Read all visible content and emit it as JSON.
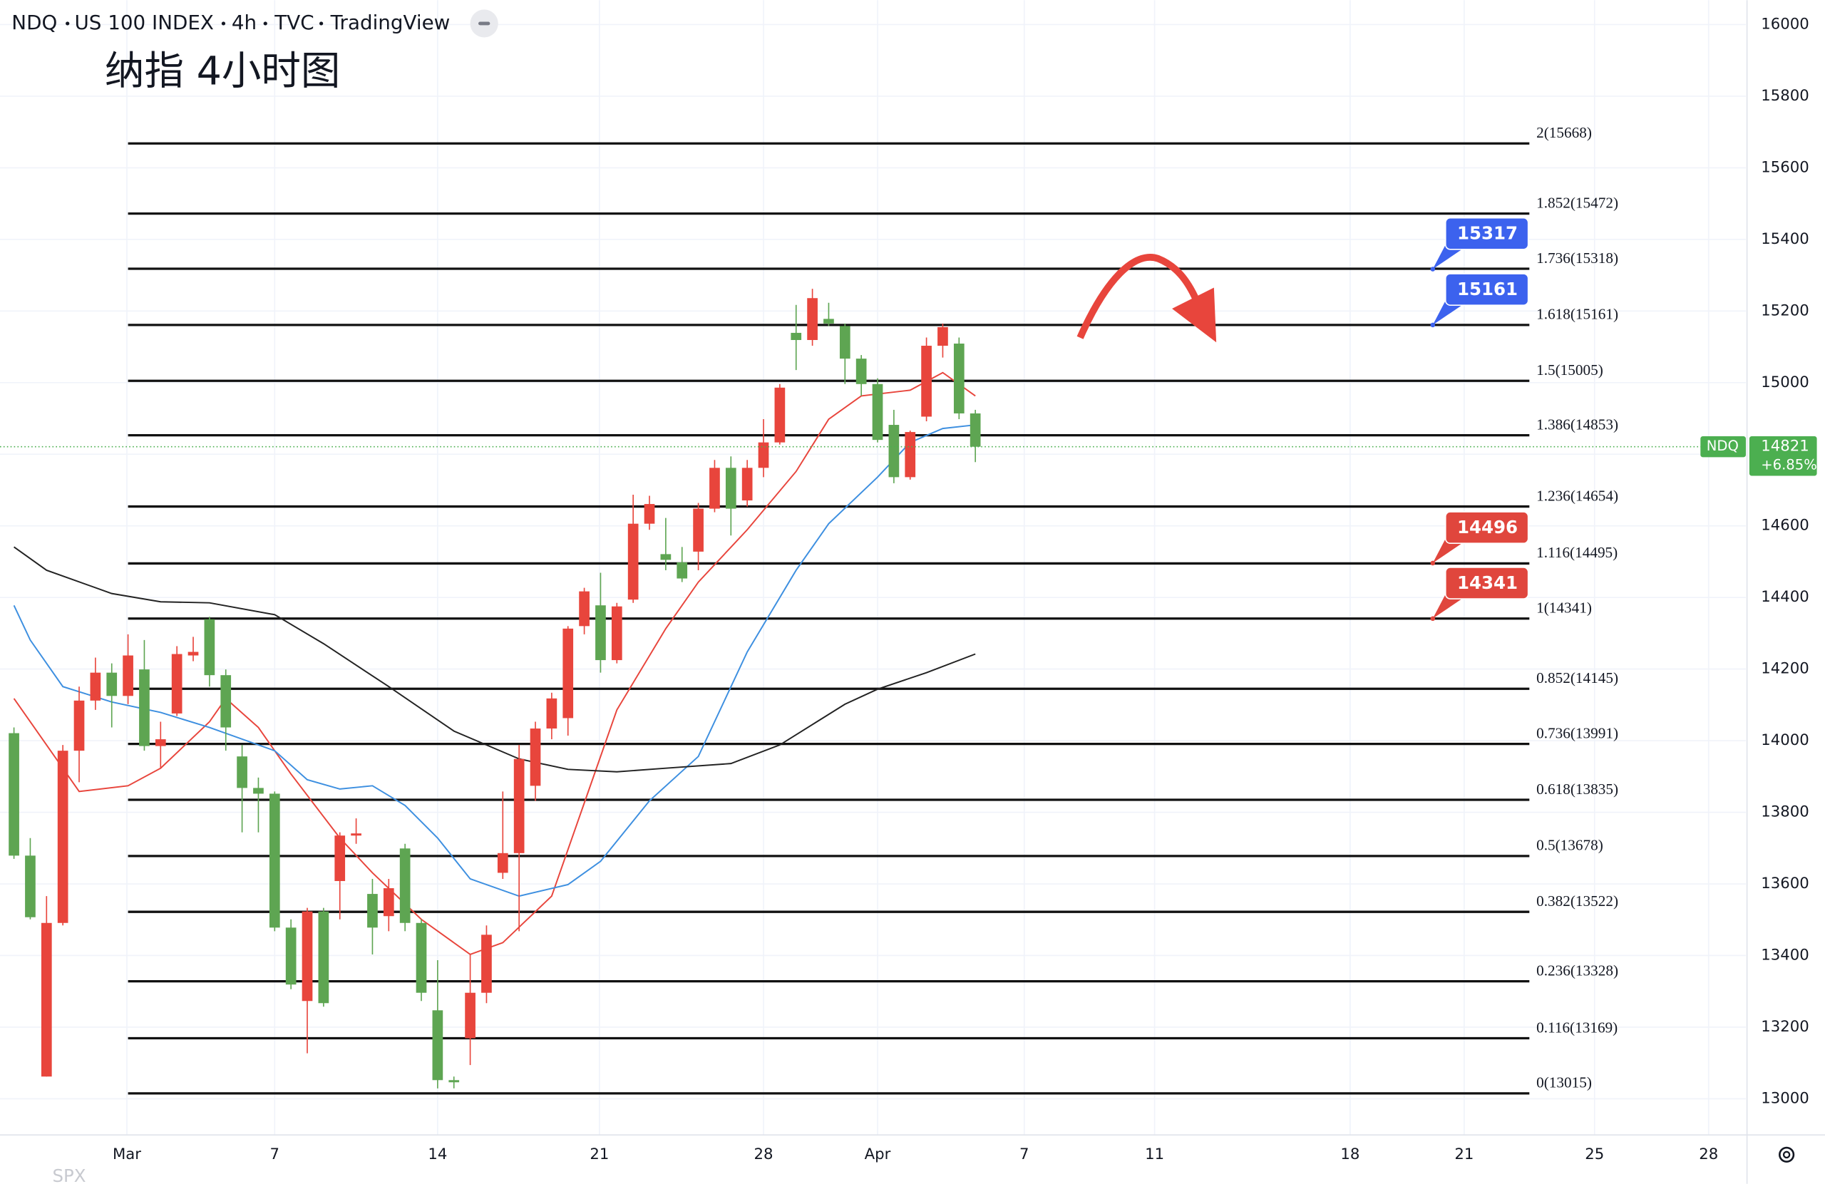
{
  "header": {
    "symbol": "NDQ",
    "name": "US 100 INDEX",
    "interval": "4h",
    "source": "TVC",
    "platform": "TradingView"
  },
  "chart_data": {
    "type": "candlestick",
    "title": "纳指 4小时图",
    "open": [
      14021,
      13679,
      13062,
      13491,
      13972,
      14112,
      14190,
      14125,
      14199,
      13985,
      14076,
      14238,
      14339,
      14183,
      13956,
      13868,
      13852,
      13478,
      13273,
      13523,
      13608,
      13735,
      13572,
      13510,
      13699,
      13491,
      13247,
      13052,
      13169,
      13296,
      13631,
      13686,
      13874,
      14034,
      14063,
      14320,
      14378,
      14225,
      14394,
      14606,
      14521,
      14498,
      14528,
      14648,
      14762,
      14671,
      14762,
      14833,
      15139,
      15119,
      15178,
      15158,
      15067,
      14996,
      14882,
      14736,
      14905,
      15103,
      15109,
      14914
    ],
    "high": [
      14037,
      13728,
      13566,
      13988,
      14151,
      14232,
      14216,
      14297,
      14281,
      14053,
      14264,
      14290,
      14346,
      14199,
      13988,
      13897,
      13858,
      13501,
      13533,
      13533,
      13744,
      13783,
      13614,
      13614,
      13712,
      13501,
      13387,
      13062,
      13403,
      13484,
      13858,
      13988,
      14053,
      14134,
      14320,
      14427,
      14469,
      14385,
      14687,
      14684,
      14622,
      14541,
      14664,
      14784,
      14794,
      14784,
      14898,
      14996,
      15217,
      15262,
      15223,
      15165,
      15077,
      15012,
      14924,
      14866,
      15126,
      15165,
      15126,
      14924
    ],
    "low": [
      13670,
      13501,
      13062,
      13484,
      13884,
      14086,
      14037,
      14102,
      13972,
      13923,
      14069,
      14222,
      14151,
      13972,
      13744,
      13744,
      13468,
      13306,
      13127,
      13257,
      13501,
      13712,
      13403,
      13468,
      13468,
      13273,
      13029,
      13029,
      13094,
      13267,
      13614,
      13468,
      13832,
      14004,
      14014,
      14297,
      14190,
      14216,
      14385,
      14589,
      14476,
      14443,
      14476,
      14638,
      14573,
      14654,
      14736,
      14827,
      15035,
      15103,
      15158,
      14996,
      14963,
      14833,
      14719,
      14729,
      14892,
      15070,
      14898,
      14778
    ],
    "close": [
      13679,
      13507,
      13491,
      13972,
      14112,
      14190,
      14125,
      14238,
      13985,
      14004,
      14242,
      14248,
      14183,
      14037,
      13868,
      13852,
      13478,
      13319,
      13523,
      13267,
      13735,
      13741,
      13478,
      13588,
      13491,
      13296,
      13052,
      13046,
      13296,
      13458,
      13686,
      13949,
      14034,
      14118,
      14313,
      14417,
      14225,
      14375,
      14606,
      14661,
      14505,
      14453,
      14648,
      14762,
      14648,
      14762,
      14833,
      14986,
      15119,
      15236,
      15165,
      15067,
      14996,
      14840,
      14736,
      14862,
      15103,
      15155,
      14914,
      14821
    ],
    "up_color": "#e8453c",
    "down_color": "#5ea552",
    "xlim": [
      -0.857,
      106.286
    ],
    "xticks": [
      {
        "value": 6.93,
        "label": "Mar"
      },
      {
        "value": 16,
        "label": "7"
      },
      {
        "value": 26,
        "label": "14"
      },
      {
        "value": 35.93,
        "label": "21"
      },
      {
        "value": 46,
        "label": "28"
      },
      {
        "value": 53,
        "label": "Apr"
      },
      {
        "value": 62,
        "label": "7"
      },
      {
        "value": 70,
        "label": "11"
      },
      {
        "value": 82,
        "label": "18"
      },
      {
        "value": 89,
        "label": "21"
      },
      {
        "value": 97,
        "label": "25"
      },
      {
        "value": 104,
        "label": "28"
      }
    ],
    "ylim": [
      12899,
      16068
    ],
    "yticks": [
      13000,
      13200,
      13400,
      13600,
      13800,
      14000,
      14200,
      14400,
      14600,
      14800,
      15000,
      15200,
      15400,
      15600,
      15800,
      16000
    ],
    "grid": true,
    "overlays": [
      {
        "color": "#e8453c",
        "x": [
          0,
          4,
          7,
          9,
          12,
          13,
          15,
          17,
          20,
          22,
          25,
          28,
          30,
          33,
          35,
          37,
          40,
          42,
          45,
          48,
          50,
          52,
          55,
          57,
          59
        ],
        "values": [
          14118,
          13858,
          13874,
          13923,
          14053,
          14118,
          14037,
          13907,
          13728,
          13631,
          13501,
          13403,
          13436,
          13566,
          13826,
          14086,
          14313,
          14443,
          14589,
          14752,
          14898,
          14963,
          14979,
          15028,
          14963
        ]
      },
      {
        "color": "#3d8fe0",
        "x": [
          0,
          1,
          3,
          6,
          9,
          12,
          16,
          18,
          20,
          22,
          24,
          26,
          28,
          31,
          34,
          36,
          39,
          42,
          45,
          48,
          50,
          53,
          55,
          57,
          59
        ],
        "values": [
          14378,
          14281,
          14151,
          14108,
          14079,
          14037,
          13972,
          13891,
          13865,
          13874,
          13819,
          13728,
          13614,
          13566,
          13598,
          13663,
          13832,
          13956,
          14248,
          14476,
          14606,
          14736,
          14833,
          14872,
          14882
        ]
      },
      {
        "color": "#222222",
        "x": [
          0,
          2,
          6,
          9,
          12,
          16,
          19,
          23,
          27,
          31,
          34,
          37,
          40,
          44,
          47,
          51,
          53,
          56,
          59
        ],
        "values": [
          14541,
          14476,
          14411,
          14388,
          14385,
          14352,
          14271,
          14151,
          14027,
          13949,
          13920,
          13913,
          13923,
          13936,
          13988,
          14102,
          14144,
          14190,
          14242
        ]
      }
    ],
    "fib_levels": [
      {
        "value": 15668,
        "label": "2(15668)"
      },
      {
        "value": 15472,
        "label": "1.852(15472)"
      },
      {
        "value": 15318,
        "label": "1.736(15318)"
      },
      {
        "value": 15161,
        "label": "1.618(15161)"
      },
      {
        "value": 15005,
        "label": "1.5(15005)"
      },
      {
        "value": 14853,
        "label": "1.386(14853)"
      },
      {
        "value": 14654,
        "label": "1.236(14654)"
      },
      {
        "value": 14495,
        "label": "1.116(14495)"
      },
      {
        "value": 14341,
        "label": "1(14341)"
      },
      {
        "value": 14145,
        "label": "0.852(14145)"
      },
      {
        "value": 13991,
        "label": "0.736(13991)"
      },
      {
        "value": 13835,
        "label": "0.618(13835)"
      },
      {
        "value": 13678,
        "label": "0.5(13678)"
      },
      {
        "value": 13522,
        "label": "0.382(13522)"
      },
      {
        "value": 13328,
        "label": "0.236(13328)"
      },
      {
        "value": 13169,
        "label": "0.116(13169)"
      },
      {
        "value": 13015,
        "label": "0(13015)"
      }
    ],
    "price_badges": [
      {
        "value": 15317,
        "color": "#3c62ee"
      },
      {
        "value": 15161,
        "color": "#3c62ee"
      },
      {
        "value": 14496,
        "color": "#e0463d"
      },
      {
        "value": 14341,
        "color": "#e0463d"
      }
    ],
    "last_price": {
      "value": 14821,
      "symbol": "NDQ",
      "change": "+6.85%",
      "color": "#4caf50"
    },
    "watermark": "SPX"
  }
}
